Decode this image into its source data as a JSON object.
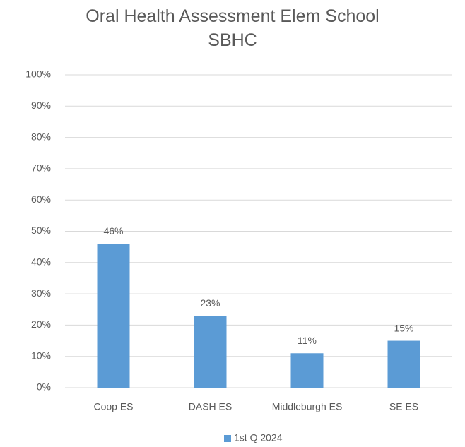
{
  "chart_data": {
    "type": "bar",
    "title": "Oral Health Assessment Elem School SBHC",
    "categories": [
      "Coop ES",
      "DASH ES",
      "Middleburgh ES",
      "SE ES"
    ],
    "series": [
      {
        "name": "1st Q 2024",
        "color": "#5b9bd5",
        "values": [
          46,
          23,
          11,
          15
        ],
        "value_labels": [
          "46%",
          "23%",
          "11%",
          "15%"
        ]
      }
    ],
    "ylim": [
      0,
      100
    ],
    "yticks": [
      {
        "value": 0,
        "label": "0%"
      },
      {
        "value": 10,
        "label": "10%"
      },
      {
        "value": 20,
        "label": "20%"
      },
      {
        "value": 30,
        "label": "30%"
      },
      {
        "value": 40,
        "label": "40%"
      },
      {
        "value": 50,
        "label": "50%"
      },
      {
        "value": 60,
        "label": "60%"
      },
      {
        "value": 70,
        "label": "70%"
      },
      {
        "value": 80,
        "label": "80%"
      },
      {
        "value": 90,
        "label": "90%"
      },
      {
        "value": 100,
        "label": "100%"
      }
    ],
    "grid": true,
    "legend": "bottom"
  }
}
